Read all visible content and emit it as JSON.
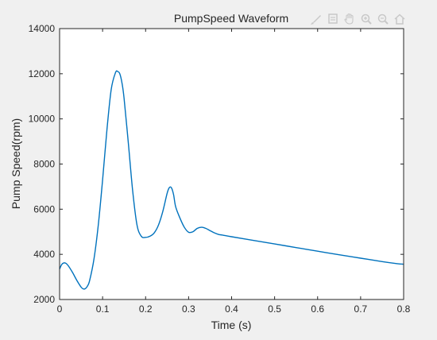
{
  "window": {
    "background": "#f0f0f0",
    "axes_background": "#ffffff",
    "axis_color": "#262626"
  },
  "toolbar": {
    "icons": [
      "brush-icon",
      "datatip-icon",
      "pan-hand-icon",
      "zoom-in-icon",
      "zoom-out-icon",
      "home-icon"
    ],
    "icon_color": "#c8c8c8"
  },
  "chart_data": {
    "type": "line",
    "title": "PumpSpeed Waveform",
    "xlabel": "Time (s)",
    "ylabel": "Pump Speed(rpm)",
    "xlim": [
      0,
      0.8
    ],
    "ylim": [
      2000,
      14000
    ],
    "xticks": [
      0,
      0.1,
      0.2,
      0.3,
      0.4,
      0.5,
      0.6,
      0.7,
      0.8
    ],
    "xtick_labels": [
      "0",
      "0.1",
      "0.2",
      "0.3",
      "0.4",
      "0.5",
      "0.6",
      "0.7",
      "0.8"
    ],
    "yticks": [
      2000,
      4000,
      6000,
      8000,
      10000,
      12000,
      14000
    ],
    "ytick_labels": [
      "2000",
      "4000",
      "6000",
      "8000",
      "10000",
      "12000",
      "14000"
    ],
    "grid": false,
    "series": [
      {
        "color": "#0072bd",
        "x": [
          0,
          0.005,
          0.01,
          0.015,
          0.02,
          0.03,
          0.04,
          0.05,
          0.055,
          0.06,
          0.065,
          0.07,
          0.08,
          0.09,
          0.1,
          0.11,
          0.12,
          0.13,
          0.135,
          0.14,
          0.145,
          0.15,
          0.16,
          0.17,
          0.18,
          0.19,
          0.2,
          0.21,
          0.22,
          0.23,
          0.24,
          0.25,
          0.255,
          0.26,
          0.265,
          0.27,
          0.28,
          0.29,
          0.3,
          0.31,
          0.32,
          0.33,
          0.34,
          0.35,
          0.36,
          0.37,
          0.38,
          0.4,
          0.45,
          0.5,
          0.55,
          0.6,
          0.65,
          0.7,
          0.75,
          0.78,
          0.8
        ],
        "y": [
          3350,
          3550,
          3620,
          3600,
          3500,
          3200,
          2850,
          2550,
          2470,
          2480,
          2600,
          2850,
          3800,
          5300,
          7300,
          9500,
          11300,
          12050,
          12100,
          12000,
          11600,
          10900,
          8900,
          6800,
          5300,
          4800,
          4750,
          4800,
          4950,
          5300,
          5900,
          6700,
          6950,
          6950,
          6650,
          6100,
          5600,
          5200,
          4980,
          5000,
          5150,
          5200,
          5150,
          5050,
          4950,
          4880,
          4850,
          4780,
          4620,
          4460,
          4300,
          4140,
          3980,
          3830,
          3680,
          3600,
          3560
        ]
      }
    ]
  }
}
